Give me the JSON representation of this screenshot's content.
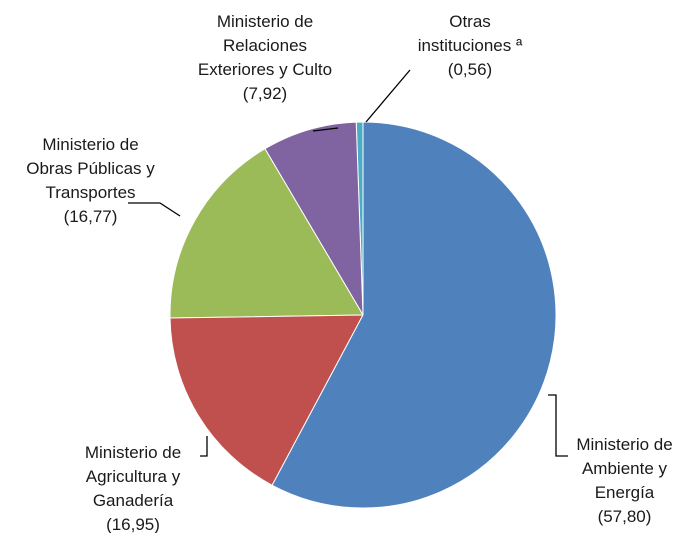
{
  "chart_data": {
    "type": "pie",
    "categories": [
      "Ministerio de Ambiente y Energía",
      "Ministerio de Agricultura y Ganadería",
      "Ministerio de Obras Públicas y Transportes",
      "Ministerio de Relaciones Exteriores y Culto",
      "Otras instituciones ª"
    ],
    "values": [
      57.8,
      16.95,
      16.77,
      7.92,
      0.56
    ],
    "value_labels": [
      "(57,80)",
      "(16,95)",
      "(16,77)",
      "(7,92)",
      "(0,56)"
    ],
    "colors": [
      "#4f81bd",
      "#c0504d",
      "#9bbb59",
      "#8064a2",
      "#4bacc6"
    ]
  }
}
